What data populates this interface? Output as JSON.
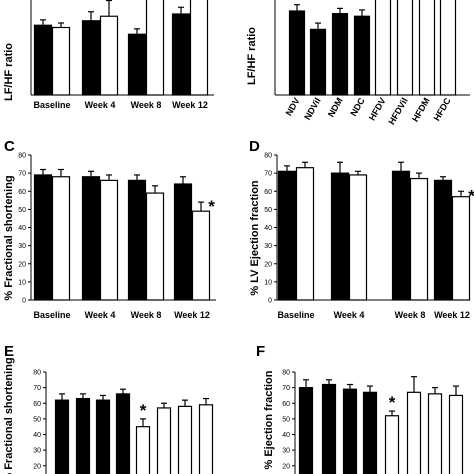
{
  "chart_data": [
    {
      "type": "bar",
      "panel_label": "",
      "ylabel": "LF/HF ratio",
      "categories": [
        "Baseline",
        "Week 4",
        "Week 8",
        "Week 12"
      ],
      "ylim": [
        0,
        0.4
      ],
      "series": [
        {
          "fill": "#000000",
          "values": [
            0.155,
            0.165,
            0.135,
            0.18
          ],
          "errors": [
            0.012,
            0.02,
            0.012,
            0.015
          ]
        },
        {
          "fill": "#ffffff",
          "values": [
            0.15,
            0.175,
            0.29,
            0.34
          ],
          "errors": [
            0.01,
            0.035,
            0.04,
            0.04
          ]
        }
      ],
      "annotations": [
        {
          "category": "Week 8",
          "series": 1,
          "text": "*"
        }
      ]
    },
    {
      "type": "bar",
      "panel_label": "",
      "ylabel": "LF/HF ratio",
      "categories": [
        "NDV",
        "NDVil",
        "NDM",
        "NDC",
        "HFDV",
        "HFDVil",
        "HFDM",
        "HFDC"
      ],
      "ylim": [
        0,
        0.4
      ],
      "bars": [
        {
          "fill": "#000000",
          "value": 0.16,
          "error": 0.012
        },
        {
          "fill": "#000000",
          "value": 0.125,
          "error": 0.012
        },
        {
          "fill": "#000000",
          "value": 0.155,
          "error": 0.01
        },
        {
          "fill": "#000000",
          "value": 0.15,
          "error": 0.012
        },
        {
          "fill": "#ffffff",
          "value": 0.42,
          "error": 0.0
        },
        {
          "fill": "#ffffff",
          "value": 0.29,
          "error": 0.018
        },
        {
          "fill": "#ffffff",
          "value": 0.295,
          "error": 0.012
        },
        {
          "fill": "#ffffff",
          "value": 0.275,
          "error": 0.012
        }
      ],
      "annotations": [
        {
          "bar": 5,
          "text": "*,†"
        },
        {
          "bar": 6,
          "text": "*,†"
        },
        {
          "bar": 7,
          "text": "*,†"
        }
      ]
    },
    {
      "type": "bar",
      "panel_label": "C",
      "ylabel": "% Fractional shortening",
      "categories": [
        "Baseline",
        "Week 4",
        "Week 8",
        "Week 12"
      ],
      "ylim": [
        0,
        80
      ],
      "yticks": [
        0,
        10,
        20,
        30,
        40,
        50,
        60,
        70,
        80
      ],
      "series": [
        {
          "fill": "#000000",
          "values": [
            69,
            68,
            66,
            64
          ],
          "errors": [
            3,
            3,
            3,
            4
          ]
        },
        {
          "fill": "#ffffff",
          "values": [
            68,
            66,
            59,
            49
          ],
          "errors": [
            4,
            3,
            4,
            5
          ]
        }
      ],
      "annotations": [
        {
          "category": "Week 12",
          "series": 1,
          "text": "*"
        }
      ]
    },
    {
      "type": "bar",
      "panel_label": "D",
      "ylabel": "% LV Ejection fraction",
      "categories": [
        "Baseline",
        "Week 4",
        "Week 8",
        "Week 12"
      ],
      "ylim": [
        0,
        80
      ],
      "yticks": [
        0,
        10,
        20,
        30,
        40,
        50,
        60,
        70,
        80
      ],
      "series": [
        {
          "fill": "#000000",
          "values": [
            71,
            70,
            71,
            66
          ],
          "errors": [
            3,
            6,
            5,
            2
          ]
        },
        {
          "fill": "#ffffff",
          "values": [
            73,
            69,
            67,
            57
          ],
          "errors": [
            3,
            2,
            3,
            3
          ]
        }
      ],
      "annotations": [
        {
          "category": "Week 12",
          "series": 1,
          "text": "*"
        }
      ]
    },
    {
      "type": "bar",
      "panel_label": "E",
      "ylabel": "% Fractional shortening",
      "ylim": [
        0,
        80
      ],
      "yticks": [
        0,
        10,
        20,
        30,
        40,
        50,
        60,
        70,
        80
      ],
      "bars": [
        {
          "fill": "#000000",
          "value": 62,
          "error": 4
        },
        {
          "fill": "#000000",
          "value": 63,
          "error": 3
        },
        {
          "fill": "#000000",
          "value": 62,
          "error": 3
        },
        {
          "fill": "#000000",
          "value": 66,
          "error": 3
        },
        {
          "fill": "#ffffff",
          "value": 45,
          "error": 5
        },
        {
          "fill": "#ffffff",
          "value": 57,
          "error": 3
        },
        {
          "fill": "#ffffff",
          "value": 58,
          "error": 4
        },
        {
          "fill": "#ffffff",
          "value": 59,
          "error": 4
        }
      ],
      "annotations": [
        {
          "bar": 4,
          "text": "*"
        }
      ]
    },
    {
      "type": "bar",
      "panel_label": "F",
      "ylabel": "% Ejection fraction",
      "ylim": [
        0,
        80
      ],
      "yticks": [
        0,
        10,
        20,
        30,
        40,
        50,
        60,
        70,
        80
      ],
      "bars": [
        {
          "fill": "#000000",
          "value": 70,
          "error": 5
        },
        {
          "fill": "#000000",
          "value": 72,
          "error": 3
        },
        {
          "fill": "#000000",
          "value": 69,
          "error": 3
        },
        {
          "fill": "#000000",
          "value": 67,
          "error": 4
        },
        {
          "fill": "#ffffff",
          "value": 52,
          "error": 3
        },
        {
          "fill": "#ffffff",
          "value": 67,
          "error": 10
        },
        {
          "fill": "#ffffff",
          "value": 66,
          "error": 4
        },
        {
          "fill": "#ffffff",
          "value": 65,
          "error": 6
        }
      ],
      "annotations": [
        {
          "bar": 4,
          "text": "*"
        }
      ]
    }
  ]
}
